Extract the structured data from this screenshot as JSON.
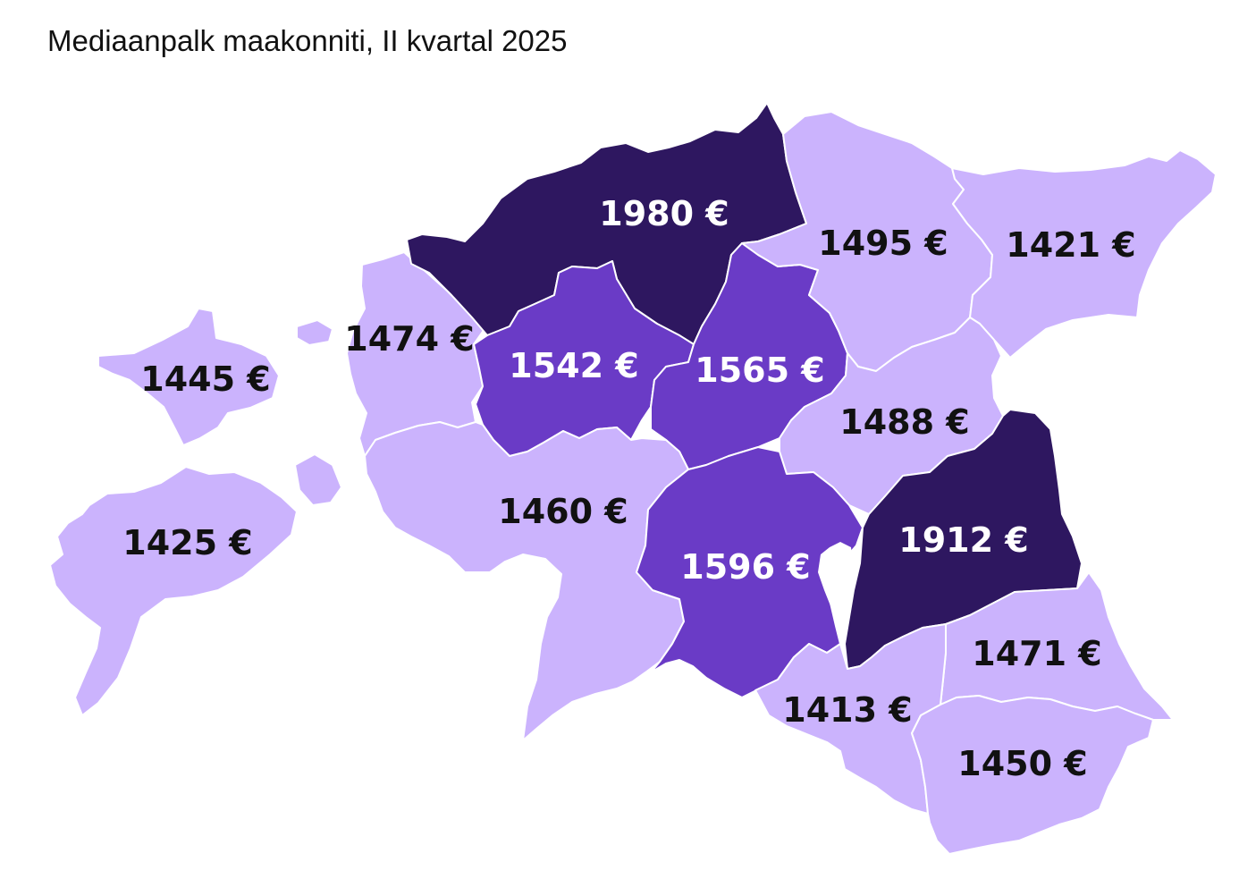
{
  "title": "Mediaanpalk maakonniti, II kvartal 2025",
  "colors": {
    "light": "#cbb3fd",
    "medium": "#6a3bc6",
    "dark": "#2e1760",
    "label_dark": "#111111",
    "label_light": "#ffffff",
    "border": "#ffffff"
  },
  "regions": [
    {
      "id": "hiiumaa",
      "value": "1445 €",
      "tone": "light"
    },
    {
      "id": "saaremaa",
      "value": "1425 €",
      "tone": "light"
    },
    {
      "id": "laanemaa",
      "value": "1474 €",
      "tone": "light"
    },
    {
      "id": "harjumaa",
      "value": "1980 €",
      "tone": "dark"
    },
    {
      "id": "raplamaa",
      "value": "1542 €",
      "tone": "medium"
    },
    {
      "id": "jarvamaa",
      "value": "1565 €",
      "tone": "medium"
    },
    {
      "id": "laane-virumaa",
      "value": "1495 €",
      "tone": "light"
    },
    {
      "id": "ida-virumaa",
      "value": "1421 €",
      "tone": "light"
    },
    {
      "id": "parnumaa",
      "value": "1460 €",
      "tone": "light"
    },
    {
      "id": "jogevamaa",
      "value": "1488 €",
      "tone": "light"
    },
    {
      "id": "viljandimaa",
      "value": "1596 €",
      "tone": "medium"
    },
    {
      "id": "tartumaa",
      "value": "1912 €",
      "tone": "dark"
    },
    {
      "id": "polvamaa",
      "value": "1471 €",
      "tone": "light"
    },
    {
      "id": "valgamaa",
      "value": "1413 €",
      "tone": "light"
    },
    {
      "id": "vorumaa",
      "value": "1450 €",
      "tone": "light"
    }
  ]
}
